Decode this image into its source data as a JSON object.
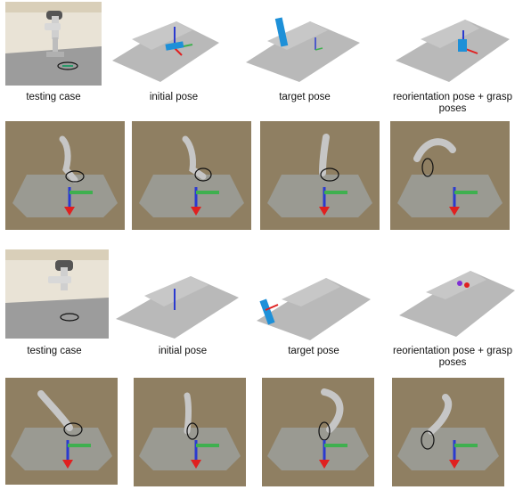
{
  "figure": {
    "block1": {
      "captions": [
        "testing case",
        "initial pose",
        "target pose",
        "reorientation pose + grasp poses"
      ],
      "top_panels": [
        "testing-case-photo",
        "initial-pose-pointcloud",
        "target-pose-pointcloud",
        "reorientation-grasp-pointcloud"
      ],
      "bottom_panels": [
        "sim-testing-case",
        "sim-initial-pose",
        "sim-target-pose",
        "sim-reorientation-pose"
      ]
    },
    "block2": {
      "captions": [
        "testing case",
        "initial pose",
        "target pose",
        "reorientation pose + grasp poses"
      ],
      "top_panels": [
        "testing-case-photo",
        "initial-pose-pointcloud",
        "target-pose-pointcloud",
        "reorientation-grasp-pointcloud"
      ],
      "bottom_panels": [
        "sim-testing-case",
        "sim-initial-pose",
        "sim-target-pose",
        "sim-reorientation-pose"
      ]
    },
    "colors": {
      "sim_background": "#8f7f62",
      "sim_table": "#9a9a92",
      "robot": "#c6c6c6",
      "pointcloud": "#9a9a9a",
      "axis_red": "#e02020",
      "axis_green": "#3fb04f",
      "axis_blue": "#2a3ad0",
      "object": "#1e90d8"
    }
  }
}
